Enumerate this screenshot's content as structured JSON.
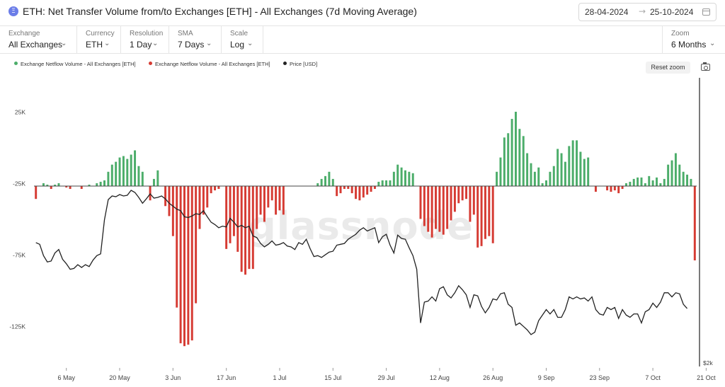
{
  "header": {
    "badge_symbol": "Ξ",
    "title": "ETH: Net Transfer Volume from/to Exchanges [ETH] - All Exchanges (7d Moving Average)",
    "date_from": "28-04-2024",
    "date_arrow": "→",
    "date_to": "25-10-2024",
    "calendar_icon": "calendar-icon"
  },
  "controls": [
    {
      "label": "Exchange",
      "value": "All Exchanges"
    },
    {
      "label": "Currency",
      "value": "ETH"
    },
    {
      "label": "Resolution",
      "value": "1 Day"
    },
    {
      "label": "SMA",
      "value": "7 Days"
    },
    {
      "label": "Scale",
      "value": "Log"
    }
  ],
  "zoom": {
    "label": "Zoom",
    "value": "6 Months"
  },
  "toolbar": {
    "reset_label": "Reset zoom",
    "camera_icon": "camera-icon"
  },
  "watermark": "glassnode",
  "colors": {
    "inflow": "#4cad6a",
    "outflow": "#d63b33",
    "price": "#222222",
    "accent": "#6b7de8"
  },
  "chart_data": {
    "type": "bar",
    "title": "ETH: Net Transfer Volume from/to Exchanges [ETH] - All Exchanges (7d Moving Average)",
    "legend": [
      {
        "name": "Exchange Netflow Volume - All Exchanges [ETH]",
        "color": "#4cad6a"
      },
      {
        "name": "Exchange Netflow Volume - All Exchanges [ETH]",
        "color": "#d63b33"
      },
      {
        "name": "Price [USD]",
        "color": "#222222"
      }
    ],
    "legend_position": "top-left",
    "x_tick_labels": [
      "6 May",
      "20 May",
      "3 Jun",
      "17 Jun",
      "1 Jul",
      "15 Jul",
      "29 Jul",
      "12 Aug",
      "26 Aug",
      "9 Sep",
      "23 Sep",
      "7 Oct",
      "21 Oct"
    ],
    "x_start": "2024-04-28",
    "y_left": {
      "ticks": [
        25000,
        -25000,
        -75000,
        -125000
      ],
      "tick_labels": [
        "25K",
        "-25K",
        "-75K",
        "-125K"
      ],
      "range": [
        -125000,
        75000
      ]
    },
    "y_right": {
      "tick_labels": [
        "$2k"
      ],
      "scale": "log"
    },
    "grid": false,
    "series": [
      {
        "name": "Exchange Netflow Volume - All Exchanges [ETH]",
        "kind": "netflow",
        "values": [
          -9000,
          0,
          2000,
          1000,
          -2000,
          1000,
          2000,
          0,
          -1000,
          -2000,
          0,
          0,
          -2000,
          0,
          1000,
          0,
          2000,
          3000,
          4000,
          10000,
          15000,
          17000,
          20000,
          21000,
          19000,
          22000,
          25000,
          14000,
          10000,
          0,
          -10000,
          5000,
          11000,
          0,
          -14000,
          -21000,
          -35000,
          -85000,
          -110000,
          -112000,
          -111000,
          -108000,
          -82000,
          -30000,
          -20000,
          -15000,
          -5000,
          -3000,
          -2000,
          0,
          -44000,
          -40000,
          -35000,
          -46000,
          -60000,
          -62000,
          -58000,
          -58000,
          -30000,
          -20000,
          -25000,
          -15000,
          -10000,
          -20000,
          -17000,
          -20000,
          0,
          0,
          0,
          0,
          0,
          0,
          0,
          0,
          2000,
          5000,
          7000,
          10000,
          5000,
          -7000,
          -5000,
          -2000,
          -2000,
          -5000,
          -9000,
          -10000,
          -8000,
          -6000,
          -4000,
          -2000,
          3000,
          4000,
          4000,
          4000,
          10000,
          15000,
          13000,
          11000,
          10000,
          9000,
          0,
          -23000,
          -28000,
          -32000,
          -36000,
          -30000,
          -32000,
          -34000,
          -30000,
          -24000,
          -18000,
          -12000,
          -10000,
          -9000,
          -25000,
          -20000,
          -43000,
          -42000,
          -37000,
          -35000,
          -40000,
          10000,
          20000,
          34000,
          37000,
          47000,
          52000,
          40000,
          35000,
          23000,
          16000,
          10000,
          13000,
          2000,
          4000,
          10000,
          14000,
          26000,
          23000,
          17000,
          28000,
          32000,
          32000,
          24000,
          19000,
          20000,
          0,
          -4000,
          0,
          0,
          -3000,
          -4000,
          -3000,
          -5000,
          -2000,
          2000,
          3000,
          5000,
          6000,
          6000,
          2000,
          7000,
          4000,
          6000,
          2000,
          5000,
          15000,
          18000,
          23000,
          15000,
          10000,
          8000,
          5000,
          -52000
        ],
        "unit": "ETH"
      },
      {
        "name": "Price [USD]",
        "values": [
          3200,
          3180,
          3050,
          2980,
          2990,
          3080,
          3120,
          3010,
          2960,
          2900,
          2910,
          2950,
          2920,
          2950,
          2930,
          3000,
          3050,
          3070,
          3480,
          3750,
          3800,
          3790,
          3820,
          3800,
          3810,
          3880,
          3850,
          3780,
          3700,
          3760,
          3830,
          3770,
          3780,
          3800,
          3760,
          3700,
          3660,
          3620,
          3600,
          3520,
          3510,
          3530,
          3560,
          3550,
          3600,
          3520,
          3450,
          3420,
          3380,
          3400,
          3390,
          3500,
          3450,
          3390,
          3410,
          3380,
          3400,
          3280,
          3260,
          3190,
          3150,
          3180,
          3220,
          3170,
          3180,
          3200,
          3160,
          3150,
          3120,
          3200,
          3180,
          3240,
          3130,
          3040,
          3050,
          3030,
          3060,
          3090,
          3100,
          3170,
          3180,
          3190,
          3240,
          3270,
          3300,
          3350,
          3380,
          3340,
          3360,
          3380,
          3200,
          3270,
          3300,
          3170,
          3080,
          3290,
          3250,
          3240,
          3140,
          3050,
          2900,
          2380,
          2570,
          2580,
          2620,
          2580,
          2700,
          2720,
          2640,
          2610,
          2660,
          2730,
          2690,
          2640,
          2520,
          2640,
          2630,
          2530,
          2470,
          2520,
          2600,
          2590,
          2650,
          2660,
          2550,
          2520,
          2360,
          2380,
          2350,
          2320,
          2280,
          2300,
          2400,
          2450,
          2500,
          2460,
          2500,
          2430,
          2430,
          2500,
          2620,
          2600,
          2620,
          2600,
          2610,
          2580,
          2620,
          2500,
          2460,
          2450,
          2520,
          2500,
          2520,
          2420,
          2500,
          2450,
          2430,
          2460,
          2460,
          2380,
          2480,
          2500,
          2560,
          2520,
          2570,
          2660,
          2660,
          2620,
          2660,
          2650,
          2550,
          2510
        ],
        "unit": "USD"
      }
    ]
  }
}
